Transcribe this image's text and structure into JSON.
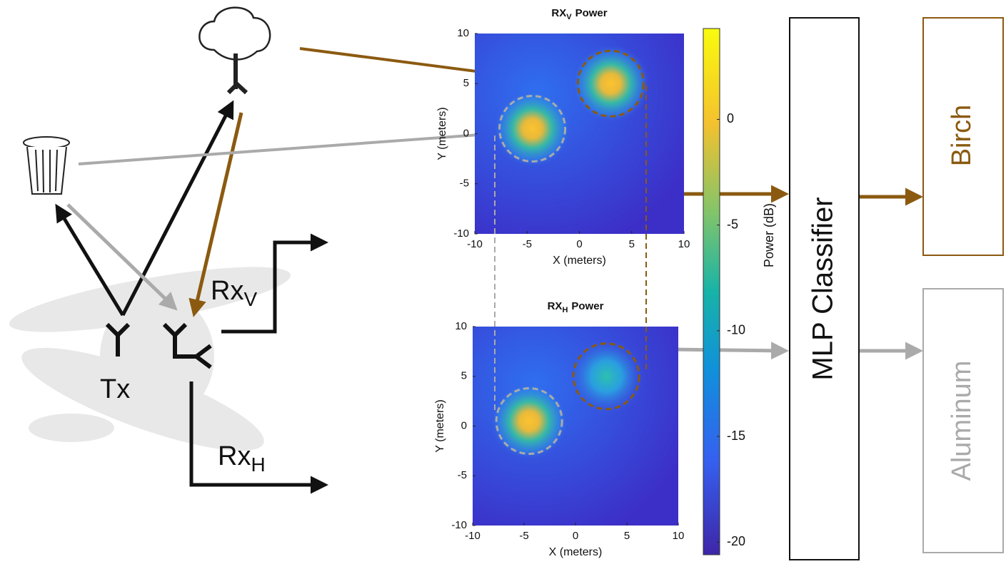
{
  "labels": {
    "tx": "Tx",
    "rx_v": "Rx",
    "rx_v_sub": "V",
    "rx_h": "Rx",
    "rx_h_sub": "H"
  },
  "plots": [
    {
      "title": "RX",
      "title_sub": "V",
      "title_rest": "Power",
      "x_label": "X (meters)",
      "y_label": "Y (meters)",
      "xlim": [
        -10,
        10
      ],
      "ylim": [
        -10,
        10
      ],
      "xticks": [
        -10,
        -5,
        0,
        5,
        10
      ],
      "yticks": [
        -10,
        -5,
        0,
        5,
        10
      ],
      "peaks": [
        {
          "x": -4.5,
          "y": 0.5
        },
        {
          "x": 3,
          "y": 5
        }
      ]
    },
    {
      "title": "RX",
      "title_sub": "H",
      "title_rest": "Power",
      "x_label": "X (meters)",
      "y_label": "Y (meters)",
      "xlim": [
        -10,
        10
      ],
      "ylim": [
        -10,
        10
      ],
      "xticks": [
        -10,
        -5,
        0,
        5,
        10
      ],
      "yticks": [
        -10,
        -5,
        0,
        5,
        10
      ],
      "peaks": [
        {
          "x": -4.5,
          "y": 0.5
        },
        {
          "x": 3,
          "y": 5
        }
      ]
    }
  ],
  "colorbar": {
    "label": "Power (dB)",
    "lim": [
      -20.6,
      4.3
    ],
    "ticks": [
      0,
      -5,
      -10,
      -15,
      -20
    ]
  },
  "classifier": "MLP Classifier",
  "outputs": [
    "Birch",
    "Aluminum"
  ]
}
